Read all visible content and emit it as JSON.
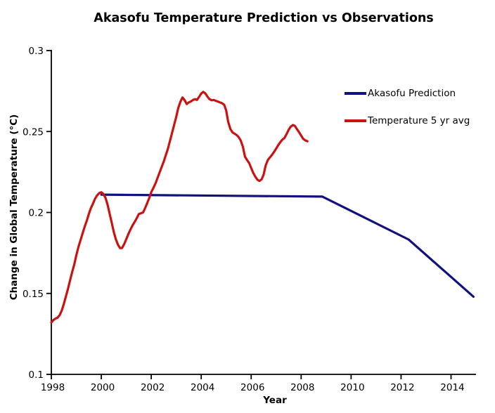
{
  "title": "Akasofu Temperature Prediction vs Observations",
  "x_axis_title": "Year",
  "y_axis_title": "Change in Global Temperature (°C)",
  "legend": {
    "items": [
      {
        "label": "Akasofu Prediction",
        "color": "#12127e"
      },
      {
        "label": "Temperature 5 yr avg",
        "color": "#cc1111"
      }
    ]
  },
  "chart_data": {
    "type": "line",
    "title": "Akasofu Temperature Prediction vs Observations",
    "xlabel": "Year",
    "ylabel": "Change in Global Temperature (°C)",
    "xlim": [
      1998,
      2015
    ],
    "ylim": [
      0.1,
      0.3
    ],
    "grid": false,
    "legend_position": "upper right inside",
    "axis_color": "#000000",
    "x_ticks": [
      {
        "value": 1998,
        "label": "1998"
      },
      {
        "value": 2000,
        "label": "2000"
      },
      {
        "value": 2002,
        "label": "2002"
      },
      {
        "value": 2004,
        "label": "2004"
      },
      {
        "value": 2006,
        "label": "2006"
      },
      {
        "value": 2008,
        "label": "2008"
      },
      {
        "value": 2010,
        "label": "2010"
      },
      {
        "value": 2012,
        "label": "2012"
      },
      {
        "value": 2014,
        "label": "2014"
      }
    ],
    "y_ticks": [
      {
        "value": 0.1,
        "label": "0.1"
      },
      {
        "value": 0.15,
        "label": "0.15"
      },
      {
        "value": 0.2,
        "label": "0.2"
      },
      {
        "value": 0.25,
        "label": "0.25"
      },
      {
        "value": 0.3,
        "label": "0.3"
      }
    ],
    "series": [
      {
        "name": "Akasofu Prediction",
        "color": "#12127e",
        "x": [
          2000.0,
          2008.85,
          2012.3,
          2014.9
        ],
        "y": [
          0.211,
          0.2098,
          0.1833,
          0.148
        ]
      },
      {
        "name": "Temperature 5 yr avg",
        "color": "#cc1111",
        "x": [
          1998.0,
          1998.08,
          1998.17,
          1998.25,
          1998.33,
          1998.42,
          1998.5,
          1998.58,
          1998.67,
          1998.75,
          1998.83,
          1998.92,
          1999.0,
          1999.08,
          1999.17,
          1999.25,
          1999.33,
          1999.42,
          1999.5,
          1999.58,
          1999.67,
          1999.75,
          1999.83,
          1999.92,
          2000.0,
          2000.08,
          2000.17,
          2000.25,
          2000.33,
          2000.42,
          2000.5,
          2000.58,
          2000.67,
          2000.75,
          2000.83,
          2000.92,
          2001.0,
          2001.08,
          2001.17,
          2001.25,
          2001.33,
          2001.42,
          2001.5,
          2001.58,
          2001.67,
          2001.75,
          2001.83,
          2001.92,
          2002.0,
          2002.08,
          2002.17,
          2002.33,
          2002.5,
          2002.67,
          2002.83,
          2003.0,
          2003.08,
          2003.17,
          2003.25,
          2003.33,
          2003.42,
          2003.5,
          2003.58,
          2003.67,
          2003.75,
          2003.83,
          2003.92,
          2004.0,
          2004.08,
          2004.17,
          2004.25,
          2004.33,
          2004.42,
          2004.5,
          2004.58,
          2004.67,
          2004.75,
          2004.83,
          2004.92,
          2005.0,
          2005.08,
          2005.17,
          2005.25,
          2005.33,
          2005.42,
          2005.5,
          2005.58,
          2005.67,
          2005.75,
          2005.83,
          2005.92,
          2006.0,
          2006.08,
          2006.17,
          2006.25,
          2006.33,
          2006.42,
          2006.5,
          2006.58,
          2006.67,
          2006.75,
          2006.83,
          2006.92,
          2007.0,
          2007.08,
          2007.17,
          2007.25,
          2007.33,
          2007.42,
          2007.5,
          2007.58,
          2007.67,
          2007.75,
          2007.83,
          2007.92,
          2008.0,
          2008.08,
          2008.17,
          2008.25
        ],
        "y": [
          0.132,
          0.1335,
          0.1345,
          0.135,
          0.1365,
          0.1395,
          0.1435,
          0.148,
          0.153,
          0.158,
          0.163,
          0.168,
          0.1735,
          0.1785,
          0.183,
          0.187,
          0.191,
          0.195,
          0.199,
          0.2025,
          0.2055,
          0.2085,
          0.2105,
          0.212,
          0.2125,
          0.2115,
          0.209,
          0.205,
          0.1995,
          0.1935,
          0.188,
          0.1835,
          0.18,
          0.178,
          0.178,
          0.1805,
          0.1835,
          0.1865,
          0.1895,
          0.192,
          0.194,
          0.1965,
          0.199,
          0.1995,
          0.2,
          0.2025,
          0.2055,
          0.209,
          0.2125,
          0.215,
          0.218,
          0.2245,
          0.2315,
          0.2395,
          0.249,
          0.259,
          0.2645,
          0.2685,
          0.271,
          0.2695,
          0.267,
          0.268,
          0.2685,
          0.2695,
          0.27,
          0.2695,
          0.2715,
          0.2735,
          0.2745,
          0.2735,
          0.2715,
          0.27,
          0.2693,
          0.2695,
          0.269,
          0.2685,
          0.268,
          0.2675,
          0.2665,
          0.263,
          0.256,
          0.2515,
          0.2495,
          0.2487,
          0.2478,
          0.2465,
          0.2445,
          0.2405,
          0.2345,
          0.2325,
          0.2305,
          0.2275,
          0.2245,
          0.222,
          0.2202,
          0.2195,
          0.2205,
          0.2235,
          0.229,
          0.2325,
          0.234,
          0.2355,
          0.2375,
          0.2395,
          0.2415,
          0.2435,
          0.245,
          0.246,
          0.2485,
          0.251,
          0.253,
          0.254,
          0.2535,
          0.2515,
          0.2495,
          0.2475,
          0.2455,
          0.2445,
          0.244
        ]
      }
    ]
  }
}
